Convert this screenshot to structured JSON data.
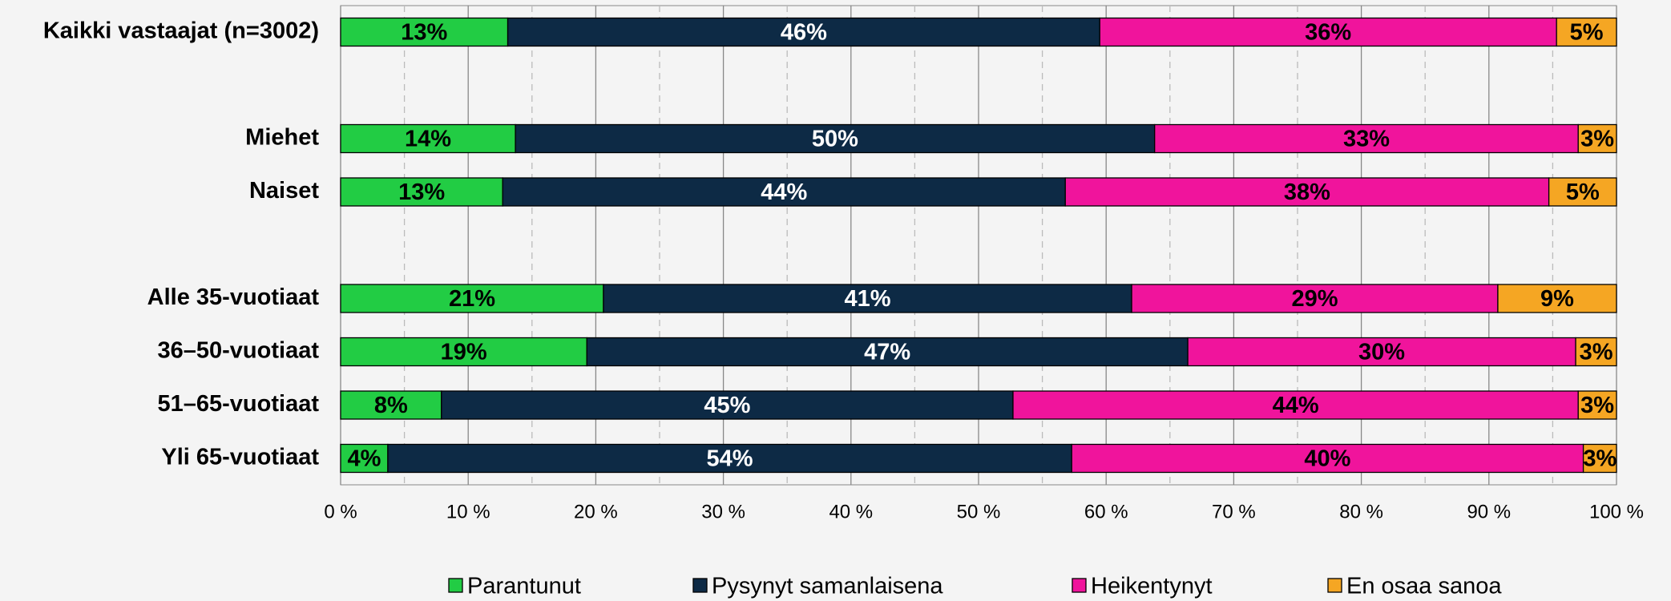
{
  "chart_data": {
    "type": "stacked_barh",
    "categories": [
      "Kaikki vastaajat (n=3002)",
      null,
      "Miehet",
      "Naiset",
      null,
      "Alle 35-vuotiaat",
      "36–50-vuotiaat",
      "51–65-vuotiaat",
      "Yli 65-vuotiaat"
    ],
    "series": [
      {
        "name": "Parantunut",
        "color": "#22cc44",
        "values": [
          13.1,
          null,
          13.7,
          12.7,
          null,
          20.6,
          19.3,
          7.9,
          3.7
        ],
        "value_labels": [
          "13%",
          null,
          "14%",
          "13%",
          null,
          "21%",
          "19%",
          "8%",
          "4%"
        ]
      },
      {
        "name": "Pysynyt samanlaisena",
        "color": "#0d2a45",
        "values": [
          46.4,
          null,
          50.1,
          44.1,
          null,
          41.4,
          47.1,
          44.8,
          53.6
        ],
        "value_labels": [
          "46%",
          null,
          "50%",
          "44%",
          null,
          "41%",
          "47%",
          "45%",
          "54%"
        ]
      },
      {
        "name": "Heikentynyt",
        "color": "#f0149c",
        "values": [
          35.8,
          null,
          33.2,
          37.9,
          null,
          28.7,
          30.4,
          44.3,
          40.1
        ],
        "value_labels": [
          "36%",
          null,
          "33%",
          "38%",
          null,
          "29%",
          "30%",
          "44%",
          "40%"
        ]
      },
      {
        "name": "En osaa sanoa",
        "color": "#f5a623",
        "values": [
          4.7,
          null,
          3.0,
          5.3,
          null,
          9.3,
          3.2,
          3.0,
          2.6
        ],
        "value_labels": [
          "5%",
          null,
          "3%",
          "5%",
          null,
          "9%",
          "3%",
          "3%",
          "3%"
        ]
      }
    ],
    "xlim": [
      0,
      100
    ],
    "xticks": [
      {
        "value": 0,
        "label": "0 %"
      },
      {
        "value": 10,
        "label": "10 %"
      },
      {
        "value": 20,
        "label": "20 %"
      },
      {
        "value": 30,
        "label": "30 %"
      },
      {
        "value": 40,
        "label": "40 %"
      },
      {
        "value": 50,
        "label": "50 %"
      },
      {
        "value": 60,
        "label": "60 %"
      },
      {
        "value": 70,
        "label": "70 %"
      },
      {
        "value": 80,
        "label": "80 %"
      },
      {
        "value": 90,
        "label": "90 %"
      },
      {
        "value": 100,
        "label": "100 %"
      }
    ],
    "xminorticks": [
      5,
      15,
      25,
      35,
      45,
      55,
      65,
      75,
      85,
      95
    ],
    "grid": true,
    "legend": "bottom"
  }
}
